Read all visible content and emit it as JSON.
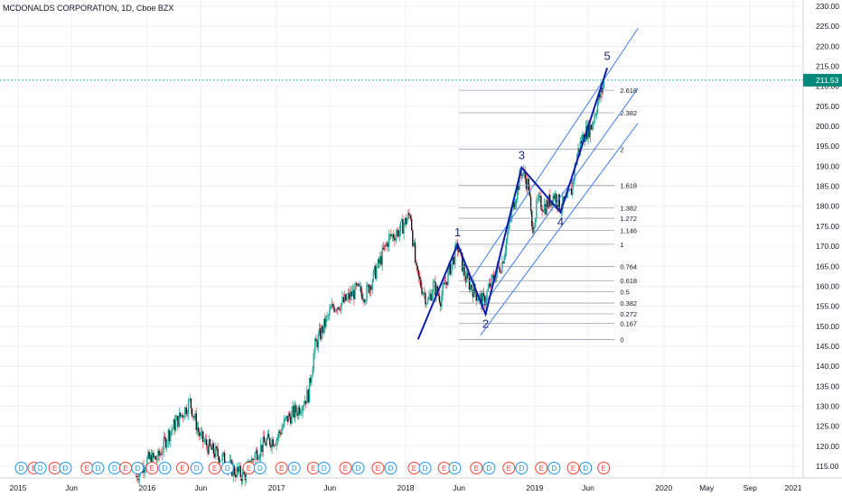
{
  "header": {
    "title": "MCDONALDS CORPORATION, 1D, Cboe BZX"
  },
  "colors": {
    "background": "#ffffff",
    "grid": "#eef0f3",
    "candle_up": "#26a69a",
    "candle_down": "#ef5350",
    "candle_body": "#131722",
    "impulse": "#0d1ea8",
    "channel": "#3d7cf5",
    "fib_line": "#9ba0ad",
    "price_tag": "#00897b",
    "event_dividend": "#2196f3",
    "event_earnings": "#f44336"
  },
  "chart_data": {
    "type": "candlestick",
    "title": "MCDONALDS CORPORATION, 1D, Cboe BZX",
    "xlim": [
      "2015-01-01",
      "2021-02-10"
    ],
    "ylim": [
      112.5,
      231.5
    ],
    "y_scale": "linear",
    "grid": true,
    "x_ticks": [
      "2015",
      "Jun",
      "2016",
      "Jun",
      "2017",
      "Jun",
      "2018",
      "Jun",
      "2019",
      "Jun",
      "2020",
      "May",
      "Sep",
      "2021"
    ],
    "x_tick_dates": [
      "2015-01-01",
      "2015-06-01",
      "2016-01-01",
      "2016-06-01",
      "2017-01-01",
      "2017-06-01",
      "2018-01-01",
      "2018-06-01",
      "2019-01-01",
      "2019-06-01",
      "2020-01-01",
      "2020-05-01",
      "2020-09-01",
      "2021-01-01"
    ],
    "y_ticks": [
      115,
      120,
      125,
      130,
      135,
      140,
      145,
      150,
      155,
      160,
      165,
      170,
      175,
      180,
      185,
      190,
      195,
      200,
      205,
      210,
      215,
      220,
      225,
      230
    ],
    "y_tick_labels": [
      "115.00",
      "120.00",
      "125.00",
      "130.00",
      "135.00",
      "140.00",
      "145.00",
      "150.00",
      "155.00",
      "160.00",
      "165.00",
      "170.00",
      "175.00",
      "180.00",
      "185.00",
      "190.00",
      "195.00",
      "200.00",
      "205.00",
      "210.00",
      "215.00",
      "220.00",
      "225.00",
      "230.00"
    ],
    "last_price": 211.53,
    "last_price_label": "211.53",
    "price_path": [
      [
        "2015-12-01",
        112.5
      ],
      [
        "2016-01-01",
        116.5
      ],
      [
        "2016-02-01",
        117
      ],
      [
        "2016-03-01",
        123
      ],
      [
        "2016-04-01",
        127
      ],
      [
        "2016-05-01",
        131
      ],
      [
        "2016-06-01",
        122
      ],
      [
        "2016-07-01",
        119
      ],
      [
        "2016-08-01",
        117
      ],
      [
        "2016-09-01",
        114
      ],
      [
        "2016-10-01",
        112.5
      ],
      [
        "2016-11-01",
        118
      ],
      [
        "2016-12-01",
        121
      ],
      [
        "2017-01-01",
        122
      ],
      [
        "2017-02-01",
        127
      ],
      [
        "2017-03-01",
        129
      ],
      [
        "2017-04-01",
        133
      ],
      [
        "2017-04-20",
        145
      ],
      [
        "2017-05-15",
        150
      ],
      [
        "2017-06-10",
        155
      ],
      [
        "2017-07-10",
        156
      ],
      [
        "2017-08-15",
        159
      ],
      [
        "2017-09-10",
        158
      ],
      [
        "2017-10-15",
        165
      ],
      [
        "2017-11-15",
        172
      ],
      [
        "2017-12-15",
        174
      ],
      [
        "2018-01-15",
        178
      ],
      [
        "2018-02-01",
        163
      ],
      [
        "2018-02-20",
        159
      ],
      [
        "2018-03-05",
        156
      ],
      [
        "2018-03-20",
        160
      ],
      [
        "2018-04-10",
        157
      ],
      [
        "2018-05-01",
        163
      ],
      [
        "2018-05-28",
        170
      ],
      [
        "2018-06-20",
        162
      ],
      [
        "2018-07-20",
        158
      ],
      [
        "2018-08-10",
        156
      ],
      [
        "2018-09-01",
        161
      ],
      [
        "2018-10-01",
        166
      ],
      [
        "2018-11-01",
        180
      ],
      [
        "2018-11-25",
        189
      ],
      [
        "2018-12-15",
        185
      ],
      [
        "2018-12-24",
        174
      ],
      [
        "2019-01-10",
        181
      ],
      [
        "2019-02-01",
        180
      ],
      [
        "2019-02-25",
        183
      ],
      [
        "2019-03-15",
        180
      ],
      [
        "2019-04-01",
        181
      ],
      [
        "2019-04-15",
        184
      ],
      [
        "2019-05-01",
        193
      ],
      [
        "2019-05-20",
        198
      ],
      [
        "2019-06-10",
        200
      ],
      [
        "2019-06-25",
        205
      ],
      [
        "2019-07-20",
        211.53
      ]
    ],
    "wave_points": [
      {
        "label": "",
        "date": "2018-02-05",
        "price": 146.7
      },
      {
        "label": "1",
        "date": "2018-05-28",
        "price": 170.5
      },
      {
        "label": "2",
        "date": "2018-08-15",
        "price": 153
      },
      {
        "label": "3",
        "date": "2018-11-25",
        "price": 189.7
      },
      {
        "label": "4",
        "date": "2019-03-15",
        "price": 178.5
      },
      {
        "label": "5",
        "date": "2019-07-25",
        "price": 214.6
      }
    ],
    "fib_levels": [
      {
        "ratio": "0",
        "price": 146.7
      },
      {
        "ratio": "0.167",
        "price": 150.7
      },
      {
        "ratio": "0.272",
        "price": 153.1
      },
      {
        "ratio": "0.382",
        "price": 155.8
      },
      {
        "ratio": "0.5",
        "price": 158.6
      },
      {
        "ratio": "0.618",
        "price": 161.4
      },
      {
        "ratio": "0.764",
        "price": 164.9
      },
      {
        "ratio": "1",
        "price": 170.5
      },
      {
        "ratio": "1.146",
        "price": 174.0
      },
      {
        "ratio": "1.272",
        "price": 177.0
      },
      {
        "ratio": "1.382",
        "price": 179.6
      },
      {
        "ratio": "1.618",
        "price": 185.2
      },
      {
        "ratio": "2",
        "price": 194.3
      },
      {
        "ratio": "2.382",
        "price": 203.4
      },
      {
        "ratio": "2.618",
        "price": 209.0
      }
    ],
    "fib_range": [
      "2018-06-01",
      "2019-08-15"
    ],
    "channel_lines": [
      [
        [
          "2018-07-01",
          161.2
        ],
        [
          "2019-10-20",
          224.5
        ]
      ],
      [
        [
          "2018-08-01",
          154.3
        ],
        [
          "2019-10-20",
          209.5
        ]
      ],
      [
        [
          "2018-08-01",
          147.8
        ],
        [
          "2019-10-20",
          200.8
        ]
      ]
    ],
    "events": [
      {
        "type": "D",
        "date": "2015-01-10"
      },
      {
        "type": "E",
        "date": "2015-02-15"
      },
      {
        "type": "D",
        "date": "2015-03-05"
      },
      {
        "type": "E",
        "date": "2015-04-15"
      },
      {
        "type": "D",
        "date": "2015-05-15"
      },
      {
        "type": "E",
        "date": "2015-07-15"
      },
      {
        "type": "D",
        "date": "2015-08-15"
      },
      {
        "type": "D",
        "date": "2015-10-01"
      },
      {
        "type": "E",
        "date": "2015-11-01"
      },
      {
        "type": "D",
        "date": "2015-12-05"
      },
      {
        "type": "E",
        "date": "2016-01-15"
      },
      {
        "type": "D",
        "date": "2016-02-20"
      },
      {
        "type": "E",
        "date": "2016-04-10"
      },
      {
        "type": "D",
        "date": "2016-05-20"
      },
      {
        "type": "E",
        "date": "2016-07-10"
      },
      {
        "type": "D",
        "date": "2016-08-15"
      },
      {
        "type": "E",
        "date": "2016-10-15"
      },
      {
        "type": "D",
        "date": "2016-11-15"
      },
      {
        "type": "E",
        "date": "2017-01-15"
      },
      {
        "type": "D",
        "date": "2017-02-20"
      },
      {
        "type": "E",
        "date": "2017-04-15"
      },
      {
        "type": "D",
        "date": "2017-05-15"
      },
      {
        "type": "E",
        "date": "2017-07-15"
      },
      {
        "type": "D",
        "date": "2017-08-20"
      },
      {
        "type": "E",
        "date": "2017-10-15"
      },
      {
        "type": "D",
        "date": "2017-11-20"
      },
      {
        "type": "E",
        "date": "2018-01-25"
      },
      {
        "type": "D",
        "date": "2018-02-25"
      },
      {
        "type": "E",
        "date": "2018-04-20"
      },
      {
        "type": "D",
        "date": "2018-05-20"
      },
      {
        "type": "E",
        "date": "2018-07-20"
      },
      {
        "type": "D",
        "date": "2018-08-25"
      },
      {
        "type": "E",
        "date": "2018-10-20"
      },
      {
        "type": "D",
        "date": "2018-11-25"
      },
      {
        "type": "E",
        "date": "2019-01-20"
      },
      {
        "type": "D",
        "date": "2019-02-25"
      },
      {
        "type": "E",
        "date": "2019-04-20"
      },
      {
        "type": "D",
        "date": "2019-05-25"
      },
      {
        "type": "E",
        "date": "2019-07-15"
      }
    ]
  }
}
